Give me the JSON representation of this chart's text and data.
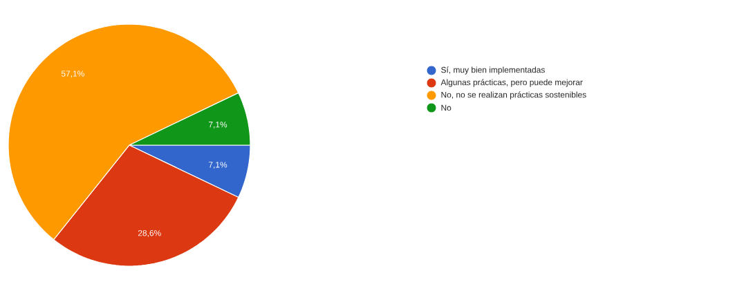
{
  "chart_data": {
    "type": "pie",
    "categories": [
      "Sí, muy bien implementadas",
      "Algunas prácticas, pero puede mejorar",
      "No, no se realizan prácticas sostenibles",
      "No"
    ],
    "values": [
      7.1,
      28.6,
      57.1,
      7.1
    ],
    "colors": [
      "#3366cc",
      "#dc3912",
      "#ff9900",
      "#109618"
    ],
    "value_labels": [
      "7,1%",
      "28,6%",
      "57,1%",
      "7,1%"
    ],
    "legend": "right"
  }
}
